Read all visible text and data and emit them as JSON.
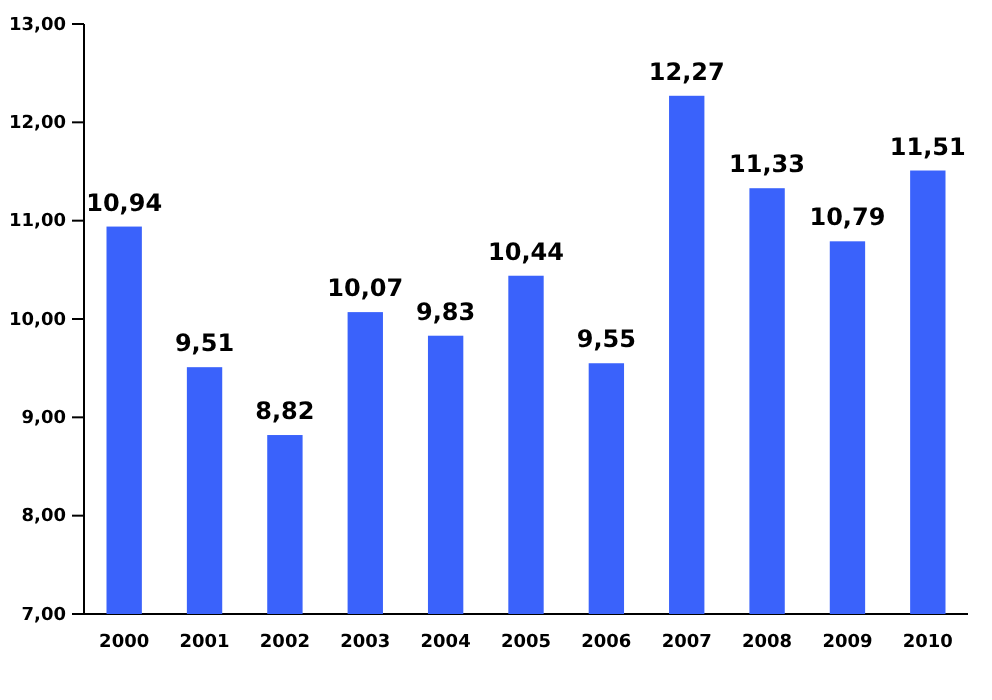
{
  "chart_data": {
    "type": "bar",
    "categories": [
      "2000",
      "2001",
      "2002",
      "2003",
      "2004",
      "2005",
      "2006",
      "2007",
      "2008",
      "2009",
      "2010"
    ],
    "values": [
      10.94,
      9.51,
      8.82,
      10.07,
      9.83,
      10.44,
      9.55,
      12.27,
      11.33,
      10.79,
      11.51
    ],
    "color": "#3a62fb",
    "value_labels": [
      "10,94",
      "9,51",
      "8,82",
      "10,07",
      "9,83",
      "10,44",
      "9,55",
      "12,27",
      "11,33",
      "10,79",
      "11,51"
    ],
    "ylim": [
      7,
      13
    ],
    "yticks": [
      {
        "value": 7,
        "label": "7,00"
      },
      {
        "value": 8,
        "label": "8,00"
      },
      {
        "value": 9,
        "label": "9,00"
      },
      {
        "value": 10,
        "label": "10,00"
      },
      {
        "value": 11,
        "label": "11,00"
      },
      {
        "value": 12,
        "label": "12,00"
      },
      {
        "value": 13,
        "label": "13,00"
      }
    ],
    "grid": false
  }
}
